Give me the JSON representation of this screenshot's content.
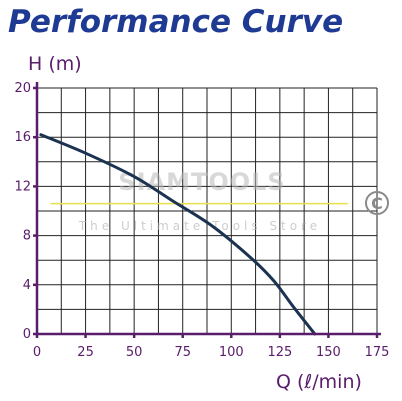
{
  "chart_data": {
    "type": "line",
    "title": "Performance Curve",
    "xlabel": "Q (ℓ/min)",
    "ylabel": "H (m)",
    "xlim": [
      0,
      175
    ],
    "ylim": [
      0,
      20
    ],
    "x_ticks": [
      0,
      25,
      50,
      75,
      100,
      125,
      150,
      175
    ],
    "y_ticks": [
      0,
      4,
      8,
      12,
      16,
      20
    ],
    "grid": true,
    "series": [
      {
        "x": [
          2,
          25,
          50,
          70,
          90,
          110,
          122,
          132,
          143
        ],
        "y": [
          16.2,
          14.7,
          12.8,
          10.8,
          8.8,
          6.2,
          4.3,
          2.2,
          0
        ]
      }
    ],
    "reference_line": {
      "y": 10.6,
      "x_start": 7,
      "x_end": 160,
      "color": "#e8e04a"
    },
    "colors": {
      "curve": "#1b3350",
      "frame": "#5a1d6b",
      "title": "#1f3a93"
    }
  },
  "watermark": {
    "brand": "SIAMTOOLS",
    "tagline": "The Ultimate Tools Store",
    "copyright_symbol": "C"
  }
}
